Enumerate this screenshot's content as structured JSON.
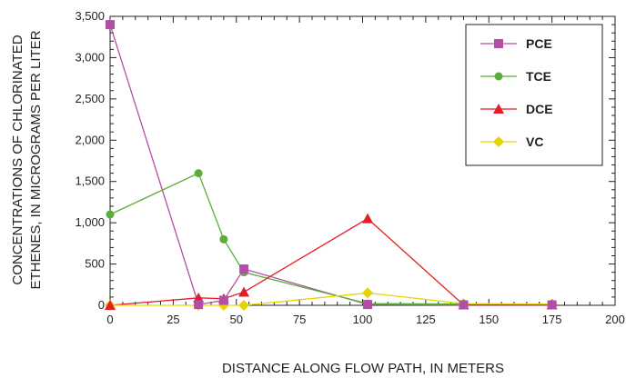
{
  "chart_data": {
    "type": "line",
    "title": "",
    "xlabel": "DISTANCE ALONG FLOW PATH, IN METERS",
    "ylabel_lines": [
      "CONCENTRATIONS OF CHLORINATED",
      "ETHENES, IN MICROGRAMS PER LITER"
    ],
    "xlim": [
      0,
      200
    ],
    "ylim": [
      0,
      3500
    ],
    "x_ticks": [
      0,
      25,
      50,
      75,
      100,
      125,
      150,
      175,
      200
    ],
    "x_tick_labels": [
      "0",
      "25",
      "50",
      "75",
      "100",
      "125",
      "150",
      "175",
      "200"
    ],
    "y_ticks": [
      0,
      500,
      1000,
      1500,
      2000,
      2500,
      3000,
      3500
    ],
    "y_tick_labels": [
      "0",
      "500",
      "1,000",
      "1,500",
      "2,000",
      "2,500",
      "3,000",
      "3,500"
    ],
    "grid": false,
    "legend_position": "top-right",
    "series": [
      {
        "name": "PCE",
        "color": "#b14fa8",
        "marker": "square",
        "points": [
          [
            0,
            3400
          ],
          [
            35,
            10
          ],
          [
            45,
            60
          ],
          [
            53,
            440
          ],
          [
            102,
            10
          ],
          [
            140,
            5
          ],
          [
            175,
            5
          ]
        ]
      },
      {
        "name": "TCE",
        "color": "#5aae3a",
        "marker": "circle",
        "points": [
          [
            0,
            1100
          ],
          [
            35,
            1600
          ],
          [
            45,
            800
          ],
          [
            53,
            400
          ],
          [
            102,
            20
          ],
          [
            140,
            15
          ],
          [
            175,
            15
          ]
        ]
      },
      {
        "name": "DCE",
        "color": "#e31e24",
        "marker": "triangle",
        "points": [
          [
            0,
            0
          ],
          [
            35,
            90
          ],
          [
            45,
            80
          ],
          [
            53,
            160
          ],
          [
            102,
            1050
          ],
          [
            140,
            5
          ],
          [
            175,
            5
          ]
        ]
      },
      {
        "name": "VC",
        "color": "#e8d300",
        "marker": "diamond",
        "points": [
          [
            0,
            0
          ],
          [
            35,
            0
          ],
          [
            45,
            0
          ],
          [
            53,
            0
          ],
          [
            102,
            150
          ],
          [
            140,
            20
          ],
          [
            175,
            15
          ]
        ]
      }
    ]
  }
}
